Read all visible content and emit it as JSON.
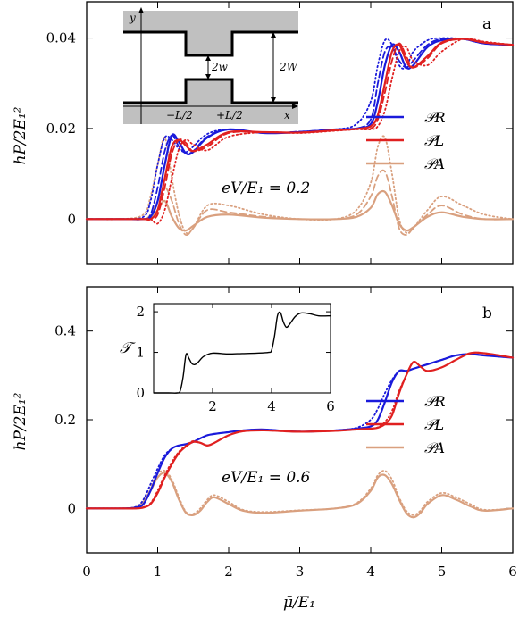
{
  "colors": {
    "R": "#1a1adb",
    "L": "#e02020",
    "A": "#d9a07f",
    "black": "#000000",
    "schematic_gray": "#c0c0c0"
  },
  "x_axis": {
    "label": "μ̄/E₁",
    "ticks": [
      0,
      1,
      2,
      3,
      4,
      5,
      6
    ],
    "tick_labels": [
      "0",
      "1",
      "2",
      "3",
      "4",
      "5",
      "6"
    ],
    "range": [
      0,
      6
    ]
  },
  "legend_entries": [
    "𝒫R",
    "𝒫L",
    "𝒫A"
  ],
  "panels": [
    {
      "id": "a",
      "label": "a",
      "ylabel": "hP/2E₁²",
      "ylim": [
        -0.01,
        0.048
      ],
      "yticks": [
        0,
        0.02,
        0.04
      ],
      "ytick_labels": [
        "0",
        "0.02",
        "0.04"
      ],
      "annotation": "eV/E₁ = 0.2"
    },
    {
      "id": "b",
      "label": "b",
      "ylabel": "hP/2E₁²",
      "ylim": [
        -0.1,
        0.5
      ],
      "yticks": [
        0,
        0.2,
        0.4
      ],
      "ytick_labels": [
        "0",
        "0.2",
        "0.4"
      ],
      "annotation": "eV/E₁ = 0.6"
    }
  ],
  "schematic": {
    "labels": {
      "y": "y",
      "x": "x",
      "w": "2w",
      "W": "2W",
      "minusL": "−L/2",
      "plusL": "+L/2"
    }
  },
  "inset": {
    "ylabel": "𝒯",
    "xticks": [
      2,
      4,
      6
    ],
    "xtick_labels": [
      "2",
      "4",
      "6"
    ],
    "yticks": [
      0,
      1,
      2
    ],
    "ytick_labels": [
      "0",
      "1",
      "2"
    ],
    "xlim": [
      0,
      6
    ],
    "ylim": [
      0,
      2.2
    ]
  },
  "chart_data": [
    {
      "type": "line",
      "title": "",
      "panel": "a",
      "xlabel": "μ̄/E₁",
      "ylabel": "hP/2E₁²",
      "xlim": [
        0,
        6
      ],
      "ylim": [
        -0.01,
        0.048
      ],
      "annotation": "eV/E₁ = 0.2",
      "x": [
        0,
        0.5,
        0.8,
        0.9,
        1.0,
        1.1,
        1.2,
        1.3,
        1.4,
        1.5,
        1.7,
        2.0,
        2.5,
        3.0,
        3.5,
        3.8,
        4.0,
        4.1,
        4.2,
        4.3,
        4.4,
        4.5,
        4.6,
        4.8,
        5.0,
        5.3,
        5.6,
        6.0
      ],
      "series": [
        {
          "name": "𝒫R",
          "style": "solid",
          "values": [
            0,
            0,
            0,
            0.0005,
            0.004,
            0.012,
            0.0185,
            0.017,
            0.0145,
            0.0148,
            0.018,
            0.0198,
            0.019,
            0.0192,
            0.0198,
            0.02,
            0.021,
            0.026,
            0.034,
            0.0385,
            0.037,
            0.0335,
            0.034,
            0.038,
            0.0395,
            0.0398,
            0.0388,
            0.0385
          ]
        },
        {
          "name": "𝒫R (dashed)",
          "style": "dashed",
          "values": [
            0,
            0,
            0,
            0.001,
            0.007,
            0.015,
            0.0185,
            0.016,
            0.0145,
            0.015,
            0.0182,
            0.0198,
            0.019,
            0.0193,
            0.0198,
            0.02,
            0.022,
            0.03,
            0.037,
            0.038,
            0.035,
            0.0335,
            0.035,
            0.0385,
            0.0398,
            0.0398,
            0.0388,
            0.0385
          ]
        },
        {
          "name": "𝒫R (dotted)",
          "style": "dotted",
          "values": [
            0,
            0,
            0.0005,
            0.004,
            0.012,
            0.018,
            0.0175,
            0.0155,
            0.0148,
            0.016,
            0.0188,
            0.0198,
            0.019,
            0.0193,
            0.0198,
            0.021,
            0.026,
            0.034,
            0.0395,
            0.0385,
            0.034,
            0.0335,
            0.037,
            0.0395,
            0.04,
            0.0398,
            0.0388,
            0.0385
          ]
        },
        {
          "name": "𝒫L",
          "style": "solid",
          "values": [
            0,
            0,
            0,
            0,
            0.002,
            0.009,
            0.016,
            0.0175,
            0.0162,
            0.015,
            0.0165,
            0.0192,
            0.0192,
            0.0191,
            0.0196,
            0.0199,
            0.0205,
            0.023,
            0.03,
            0.037,
            0.0385,
            0.035,
            0.0335,
            0.036,
            0.039,
            0.0398,
            0.039,
            0.0385
          ]
        },
        {
          "name": "𝒫L (dashed)",
          "style": "dashed",
          "values": [
            0,
            0,
            0,
            0,
            0.001,
            0.007,
            0.0145,
            0.0175,
            0.0168,
            0.015,
            0.016,
            0.019,
            0.0192,
            0.0191,
            0.0196,
            0.0199,
            0.02,
            0.022,
            0.028,
            0.035,
            0.0388,
            0.036,
            0.0335,
            0.0355,
            0.0388,
            0.0398,
            0.039,
            0.0385
          ]
        },
        {
          "name": "𝒫L (dotted)",
          "style": "dotted",
          "values": [
            0,
            0,
            0,
            0,
            -0.001,
            0.002,
            0.009,
            0.0155,
            0.0175,
            0.0165,
            0.0152,
            0.0182,
            0.0192,
            0.019,
            0.0195,
            0.0198,
            0.0198,
            0.0205,
            0.024,
            0.031,
            0.037,
            0.038,
            0.035,
            0.034,
            0.037,
            0.0398,
            0.0392,
            0.0385
          ]
        },
        {
          "name": "𝒫A",
          "style": "solid",
          "values": [
            0,
            0,
            0,
            0.0003,
            0.002,
            0.004,
            0.0005,
            -0.002,
            -0.0025,
            -0.0015,
            0.0005,
            0.001,
            0.0003,
            0,
            0,
            0.0005,
            0.0025,
            0.0055,
            0.006,
            0.003,
            -0.001,
            -0.0025,
            -0.0018,
            0.0005,
            0.0015,
            0.0005,
            0,
            0
          ]
        },
        {
          "name": "𝒫A (dashed)",
          "style": "dashed",
          "values": [
            0,
            0,
            0,
            0.001,
            0.004,
            0.007,
            0.004,
            -0.001,
            -0.0035,
            -0.002,
            0.002,
            0.0015,
            0.0005,
            0,
            0,
            0.001,
            0.005,
            0.0095,
            0.0105,
            0.005,
            -0.002,
            -0.0035,
            -0.002,
            0.001,
            0.003,
            0.001,
            0,
            0
          ]
        },
        {
          "name": "𝒫A (dotted)",
          "style": "dotted",
          "values": [
            0,
            0,
            0.001,
            0.005,
            0.012,
            0.018,
            0.009,
            0.001,
            -0.003,
            -0.002,
            0.003,
            0.003,
            0.001,
            0,
            0,
            0.002,
            0.008,
            0.016,
            0.018,
            0.01,
            0.0,
            -0.003,
            -0.002,
            0.002,
            0.005,
            0.003,
            0.001,
            0
          ]
        }
      ]
    },
    {
      "type": "line",
      "title": "",
      "panel": "b",
      "xlabel": "μ̄/E₁",
      "ylabel": "hP/2E₁²",
      "xlim": [
        0,
        6
      ],
      "ylim": [
        -0.1,
        0.5
      ],
      "annotation": "eV/E₁ = 0.6",
      "x": [
        0,
        0.5,
        0.7,
        0.8,
        0.9,
        1.0,
        1.1,
        1.2,
        1.3,
        1.4,
        1.5,
        1.6,
        1.7,
        1.8,
        2.0,
        2.2,
        2.5,
        3.0,
        3.5,
        3.8,
        4.0,
        4.1,
        4.2,
        4.3,
        4.4,
        4.5,
        4.6,
        4.7,
        4.8,
        5.0,
        5.2,
        5.4,
        5.6,
        6.0
      ],
      "series": [
        {
          "name": "𝒫R",
          "style": "solid",
          "values": [
            0,
            0,
            0.002,
            0.01,
            0.04,
            0.08,
            0.115,
            0.135,
            0.142,
            0.145,
            0.15,
            0.158,
            0.165,
            0.168,
            0.172,
            0.176,
            0.178,
            0.173,
            0.176,
            0.18,
            0.185,
            0.2,
            0.24,
            0.285,
            0.31,
            0.31,
            0.315,
            0.32,
            0.325,
            0.335,
            0.345,
            0.348,
            0.345,
            0.34
          ]
        },
        {
          "name": "𝒫R (dotted)",
          "style": "dotted",
          "values": [
            0,
            0,
            0.004,
            0.02,
            0.055,
            0.09,
            0.12,
            0.135,
            0.142,
            0.145,
            0.15,
            0.158,
            0.165,
            0.168,
            0.172,
            0.176,
            0.178,
            0.173,
            0.176,
            0.182,
            0.2,
            0.225,
            0.26,
            0.29,
            0.31,
            0.31,
            0.315,
            0.32,
            0.325,
            0.335,
            0.345,
            0.348,
            0.345,
            0.34
          ]
        },
        {
          "name": "𝒫L",
          "style": "solid",
          "values": [
            0,
            0,
            0,
            0.002,
            0.01,
            0.035,
            0.07,
            0.1,
            0.125,
            0.14,
            0.15,
            0.148,
            0.142,
            0.148,
            0.165,
            0.174,
            0.176,
            0.173,
            0.175,
            0.178,
            0.18,
            0.182,
            0.19,
            0.21,
            0.26,
            0.3,
            0.33,
            0.32,
            0.31,
            0.318,
            0.335,
            0.35,
            0.35,
            0.34
          ]
        },
        {
          "name": "𝒫L (dotted)",
          "style": "dotted",
          "values": [
            0,
            0,
            0,
            0.003,
            0.012,
            0.04,
            0.075,
            0.105,
            0.128,
            0.142,
            0.152,
            0.148,
            0.142,
            0.148,
            0.165,
            0.174,
            0.176,
            0.173,
            0.175,
            0.178,
            0.18,
            0.183,
            0.195,
            0.22,
            0.265,
            0.3,
            0.33,
            0.32,
            0.31,
            0.318,
            0.335,
            0.35,
            0.35,
            0.34
          ]
        },
        {
          "name": "𝒫A",
          "style": "solid",
          "values": [
            0,
            0,
            0.003,
            0.015,
            0.04,
            0.07,
            0.08,
            0.06,
            0.02,
            -0.01,
            -0.015,
            -0.005,
            0.015,
            0.025,
            0.01,
            -0.005,
            -0.01,
            -0.005,
            0,
            0.01,
            0.04,
            0.07,
            0.075,
            0.055,
            0.02,
            -0.01,
            -0.02,
            -0.01,
            0.01,
            0.03,
            0.02,
            0.005,
            -0.005,
            0
          ]
        },
        {
          "name": "𝒫A (dotted)",
          "style": "dotted",
          "values": [
            0,
            0,
            0.004,
            0.02,
            0.05,
            0.078,
            0.085,
            0.065,
            0.025,
            -0.008,
            -0.012,
            0,
            0.02,
            0.03,
            0.015,
            -0.003,
            -0.008,
            -0.004,
            0,
            0.012,
            0.045,
            0.075,
            0.085,
            0.065,
            0.025,
            -0.005,
            -0.015,
            -0.005,
            0.015,
            0.035,
            0.025,
            0.01,
            -0.003,
            0
          ]
        }
      ]
    },
    {
      "type": "line",
      "title": "",
      "panel": "b-inset",
      "ylabel": "𝒯",
      "xlim": [
        0,
        6
      ],
      "ylim": [
        0,
        2.2
      ],
      "x": [
        0,
        0.5,
        0.8,
        0.9,
        1.0,
        1.1,
        1.2,
        1.3,
        1.4,
        1.5,
        1.7,
        2.0,
        2.5,
        3.0,
        3.5,
        3.9,
        4.0,
        4.1,
        4.2,
        4.3,
        4.4,
        4.5,
        4.6,
        4.8,
        5.0,
        5.3,
        5.6,
        6.0
      ],
      "series": [
        {
          "name": "𝒯",
          "style": "solid",
          "values": [
            0,
            0,
            0,
            0.05,
            0.4,
            0.95,
            0.85,
            0.72,
            0.7,
            0.75,
            0.9,
            0.98,
            0.96,
            0.97,
            0.98,
            1.0,
            1.05,
            1.4,
            1.9,
            1.98,
            1.75,
            1.62,
            1.68,
            1.88,
            1.97,
            1.95,
            1.9,
            1.9
          ]
        }
      ]
    }
  ]
}
